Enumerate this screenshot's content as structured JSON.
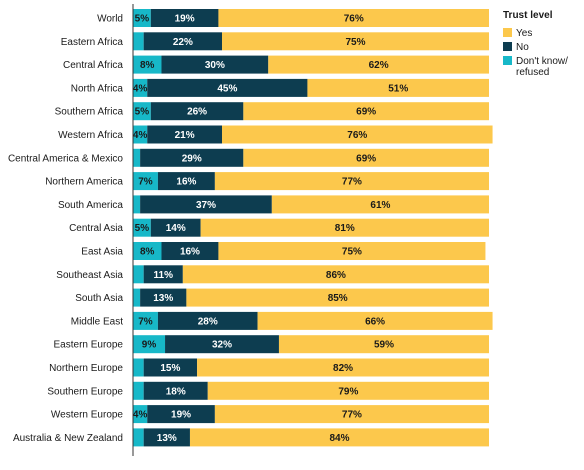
{
  "chart_data": {
    "type": "bar",
    "orientation": "horizontal",
    "stacked": true,
    "categories": [
      "World",
      "Eastern Africa",
      "Central Africa",
      "North Africa",
      "Southern Africa",
      "Western Africa",
      "Central America & Mexico",
      "Northern America",
      "South America",
      "Central Asia",
      "East Asia",
      "Southeast Asia",
      "South Asia",
      "Middle East",
      "Eastern Europe",
      "Northern Europe",
      "Southern Europe",
      "Western Europe",
      "Australia & New Zealand"
    ],
    "series": [
      {
        "name": "Don't know/ refused",
        "color": "#17b8c8",
        "values": [
          5,
          3,
          8,
          4,
          5,
          4,
          2,
          7,
          2,
          5,
          8,
          3,
          2,
          7,
          9,
          3,
          3,
          4,
          3
        ],
        "labels": [
          "5%",
          "",
          "8%",
          "4%",
          "5%",
          "4%",
          "",
          "7%",
          "",
          "5%",
          "8%",
          "",
          "",
          "7%",
          "9%",
          "",
          "",
          "4%",
          ""
        ]
      },
      {
        "name": "No",
        "color": "#0d3d50",
        "values": [
          19,
          22,
          30,
          45,
          26,
          21,
          29,
          16,
          37,
          14,
          16,
          11,
          13,
          28,
          32,
          15,
          18,
          19,
          13
        ],
        "labels": [
          "19%",
          "22%",
          "30%",
          "45%",
          "26%",
          "21%",
          "29%",
          "16%",
          "37%",
          "14%",
          "16%",
          "11%",
          "13%",
          "28%",
          "32%",
          "15%",
          "18%",
          "19%",
          "13%"
        ]
      },
      {
        "name": "Yes",
        "color": "#fcc84c",
        "values": [
          76,
          75,
          62,
          51,
          69,
          76,
          69,
          77,
          61,
          81,
          75,
          86,
          85,
          66,
          59,
          82,
          79,
          77,
          84
        ],
        "labels": [
          "76%",
          "75%",
          "62%",
          "51%",
          "69%",
          "76%",
          "69%",
          "77%",
          "61%",
          "81%",
          "75%",
          "86%",
          "85%",
          "66%",
          "59%",
          "82%",
          "79%",
          "77%",
          "84%"
        ]
      }
    ],
    "legend": {
      "title": "Trust level",
      "position": "top-right",
      "order": [
        "Yes",
        "No",
        "Don't know/ refused"
      ]
    },
    "xlim": [
      0,
      100
    ],
    "grid": false
  }
}
